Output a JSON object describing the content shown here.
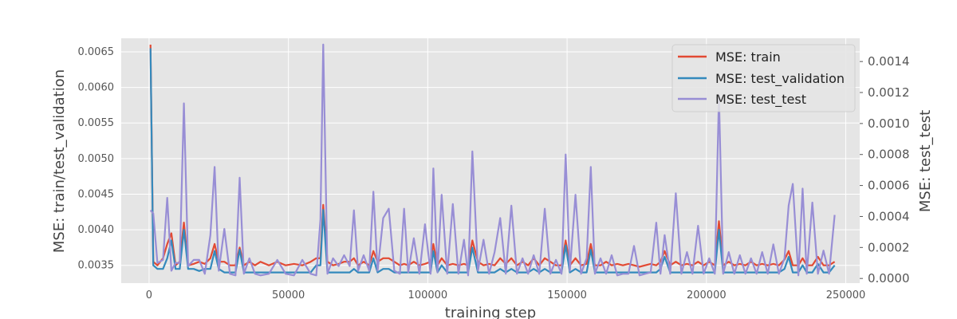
{
  "chart_data": {
    "type": "line",
    "xlabel": "training step",
    "ylabel_left": "MSE: train/test_validation",
    "ylabel_right": "MSE: test_test",
    "grid": true,
    "legend_position": "top-right",
    "xlim": [
      -10000,
      255000
    ],
    "ylim_left": [
      0.00325,
      0.00669
    ],
    "ylim_right": [
      -3e-05,
      0.00155
    ],
    "x_ticks": [
      0,
      50000,
      100000,
      150000,
      200000,
      250000
    ],
    "y_ticks_left": [
      0.0035,
      0.004,
      0.0045,
      0.005,
      0.0055,
      0.006,
      0.0065
    ],
    "y_ticks_left_labels": [
      "0.0035",
      "0.0040",
      "0.0045",
      "0.0050",
      "0.0055",
      "0.0060",
      "0.0065"
    ],
    "y_ticks_right": [
      0.0,
      0.0002,
      0.0004,
      0.0006,
      0.0008,
      0.001,
      0.0012,
      0.0014
    ],
    "y_ticks_right_labels": [
      "0.0000",
      "0.0002",
      "0.0004",
      "0.0006",
      "0.0008",
      "0.0010",
      "0.0012",
      "0.0014"
    ],
    "x": [
      500,
      1500,
      3000,
      5000,
      6500,
      8000,
      9500,
      11000,
      12500,
      14000,
      16000,
      18000,
      20000,
      22000,
      23500,
      25000,
      27000,
      29000,
      31000,
      32500,
      34000,
      36000,
      38000,
      40000,
      43000,
      46000,
      49000,
      52000,
      55000,
      58000,
      60000,
      61500,
      62500,
      64000,
      66000,
      68000,
      70000,
      72000,
      73500,
      75000,
      77000,
      79000,
      80500,
      82000,
      84000,
      86000,
      88000,
      90000,
      91500,
      93000,
      95000,
      97000,
      99000,
      101000,
      102000,
      103500,
      105000,
      107000,
      109000,
      111000,
      113000,
      114500,
      116000,
      118000,
      120000,
      122000,
      124000,
      126000,
      128000,
      130000,
      132000,
      134000,
      136000,
      138000,
      140000,
      142000,
      144000,
      146000,
      148000,
      149500,
      151000,
      153000,
      155000,
      157000,
      158500,
      160000,
      162000,
      164000,
      166000,
      168000,
      170000,
      172000,
      174000,
      176000,
      178000,
      180000,
      182000,
      183500,
      185000,
      187000,
      189000,
      191000,
      193000,
      195000,
      197000,
      199000,
      201000,
      203000,
      204500,
      206000,
      208000,
      210000,
      212000,
      214000,
      216000,
      218000,
      220000,
      222000,
      224000,
      226000,
      228000,
      229500,
      231000,
      233000,
      234500,
      236000,
      238000,
      240000,
      242000,
      244000,
      246000
    ],
    "series": [
      {
        "name": "MSE: train",
        "axis": "left",
        "color": "#e24a33",
        "values": [
          0.0066,
          0.00355,
          0.0035,
          0.0036,
          0.0038,
          0.00395,
          0.0035,
          0.00355,
          0.0041,
          0.0035,
          0.00352,
          0.00355,
          0.00352,
          0.0036,
          0.0038,
          0.00355,
          0.00355,
          0.0035,
          0.0035,
          0.00375,
          0.0035,
          0.00355,
          0.0035,
          0.00355,
          0.0035,
          0.00355,
          0.0035,
          0.00352,
          0.0035,
          0.00355,
          0.0036,
          0.0036,
          0.00435,
          0.00355,
          0.0035,
          0.00352,
          0.00355,
          0.00355,
          0.0036,
          0.0035,
          0.00355,
          0.0035,
          0.0037,
          0.00355,
          0.0036,
          0.0036,
          0.00355,
          0.0035,
          0.00352,
          0.0035,
          0.00355,
          0.0035,
          0.00352,
          0.00355,
          0.0038,
          0.0035,
          0.0036,
          0.0035,
          0.00352,
          0.0035,
          0.00352,
          0.0035,
          0.00385,
          0.00355,
          0.0035,
          0.00352,
          0.0035,
          0.0036,
          0.00352,
          0.0036,
          0.0035,
          0.00355,
          0.0035,
          0.0036,
          0.0035,
          0.0036,
          0.00355,
          0.0035,
          0.0035,
          0.00385,
          0.0035,
          0.0036,
          0.0035,
          0.00352,
          0.0038,
          0.0035,
          0.0035,
          0.00355,
          0.0035,
          0.00352,
          0.0035,
          0.00352,
          0.0035,
          0.00348,
          0.0035,
          0.00352,
          0.0035,
          0.00355,
          0.0037,
          0.0035,
          0.00355,
          0.0035,
          0.00352,
          0.0035,
          0.00355,
          0.0035,
          0.00355,
          0.0035,
          0.00412,
          0.0035,
          0.00355,
          0.0035,
          0.00352,
          0.0035,
          0.00355,
          0.0035,
          0.00352,
          0.0035,
          0.00352,
          0.0035,
          0.00358,
          0.0037,
          0.0035,
          0.0035,
          0.0036,
          0.0035,
          0.0035,
          0.00362,
          0.0035,
          0.0035,
          0.00355
        ]
      },
      {
        "name": "MSE: test_validation",
        "axis": "left",
        "color": "#348abd",
        "values": [
          0.00655,
          0.0035,
          0.00345,
          0.00345,
          0.0036,
          0.00385,
          0.00345,
          0.00345,
          0.004,
          0.00345,
          0.00345,
          0.00342,
          0.00345,
          0.00345,
          0.0037,
          0.00345,
          0.0034,
          0.0034,
          0.0034,
          0.00372,
          0.0034,
          0.0034,
          0.0034,
          0.0034,
          0.0034,
          0.0034,
          0.0034,
          0.0034,
          0.0034,
          0.0034,
          0.0035,
          0.0035,
          0.00428,
          0.0034,
          0.0034,
          0.0034,
          0.0034,
          0.0034,
          0.00345,
          0.0034,
          0.0034,
          0.0034,
          0.0036,
          0.0034,
          0.00345,
          0.00345,
          0.0034,
          0.0034,
          0.0034,
          0.0034,
          0.0034,
          0.0034,
          0.0034,
          0.0034,
          0.0037,
          0.0034,
          0.0035,
          0.0034,
          0.0034,
          0.0034,
          0.0034,
          0.0034,
          0.00375,
          0.0034,
          0.0034,
          0.0034,
          0.0034,
          0.00345,
          0.0034,
          0.00345,
          0.0034,
          0.0034,
          0.0034,
          0.00345,
          0.0034,
          0.00345,
          0.0034,
          0.0034,
          0.0034,
          0.00378,
          0.0034,
          0.00345,
          0.0034,
          0.0034,
          0.00372,
          0.0034,
          0.0034,
          0.0034,
          0.0034,
          0.0034,
          0.0034,
          0.0034,
          0.0034,
          0.0034,
          0.0034,
          0.0034,
          0.0034,
          0.00345,
          0.00362,
          0.0034,
          0.0034,
          0.0034,
          0.0034,
          0.0034,
          0.0034,
          0.0034,
          0.0034,
          0.0034,
          0.004,
          0.0034,
          0.0034,
          0.0034,
          0.0034,
          0.0034,
          0.0034,
          0.0034,
          0.0034,
          0.0034,
          0.0034,
          0.0034,
          0.00345,
          0.00362,
          0.0034,
          0.0034,
          0.0035,
          0.0034,
          0.0034,
          0.00352,
          0.0034,
          0.0034,
          0.0035
        ]
      },
      {
        "name": "MSE: test_test",
        "axis": "right",
        "color": "#988ed5",
        "values": [
          0.00044,
          0.00042,
          0.0001,
          0.00012,
          0.00052,
          5e-05,
          0.0001,
          0.0001,
          0.00113,
          8e-05,
          0.00012,
          0.00012,
          3e-05,
          0.00028,
          0.00072,
          5e-05,
          0.00032,
          3e-05,
          2e-05,
          0.00065,
          3e-05,
          0.00013,
          3e-05,
          2e-05,
          3e-05,
          0.00012,
          3e-05,
          2e-05,
          0.00012,
          3e-05,
          2e-05,
          0.00038,
          0.00151,
          3e-05,
          0.00013,
          8e-05,
          0.00015,
          8e-05,
          0.00044,
          5e-05,
          0.00015,
          5e-05,
          0.00056,
          5e-05,
          0.00039,
          0.00045,
          5e-05,
          3e-05,
          0.00045,
          4e-05,
          0.00026,
          3e-05,
          0.00035,
          3e-05,
          0.00071,
          4e-05,
          0.00054,
          3e-05,
          0.00048,
          3e-05,
          0.00025,
          2e-05,
          0.00082,
          5e-05,
          0.00025,
          3e-05,
          0.00017,
          0.00039,
          3e-05,
          0.00047,
          3e-05,
          0.00013,
          3e-05,
          0.00015,
          3e-05,
          0.00045,
          3e-05,
          0.00012,
          3e-05,
          0.0008,
          5e-05,
          0.00054,
          3e-05,
          0.00013,
          0.00072,
          3e-05,
          0.00013,
          3e-05,
          0.00015,
          2e-05,
          3e-05,
          3e-05,
          0.00021,
          2e-05,
          3e-05,
          4e-05,
          0.00036,
          3e-05,
          0.00028,
          3e-05,
          0.00055,
          3e-05,
          0.00017,
          3e-05,
          0.00034,
          3e-05,
          0.00013,
          3e-05,
          0.00118,
          3e-05,
          0.00017,
          3e-05,
          0.00015,
          3e-05,
          0.00013,
          3e-05,
          0.00017,
          3e-05,
          0.00022,
          3e-05,
          0.00013,
          0.00047,
          0.00061,
          2e-05,
          0.00058,
          3e-05,
          0.00049,
          3e-05,
          0.00018,
          3e-05,
          0.00041
        ]
      }
    ]
  }
}
